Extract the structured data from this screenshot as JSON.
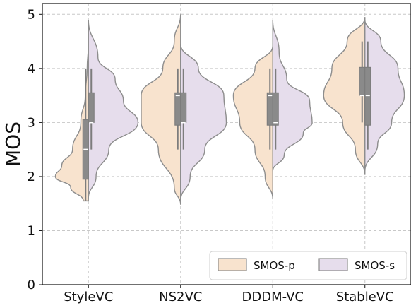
{
  "chart_data": {
    "type": "violin",
    "title": "",
    "xlabel": "",
    "ylabel": "MOS",
    "ylim": [
      0,
      5.2
    ],
    "yticks": [
      0,
      1,
      2,
      3,
      4,
      5
    ],
    "grid": true,
    "legend_placement": "bottom-right",
    "categories": [
      "StyleVC",
      "NS2VC",
      "DDDM-VC",
      "StableVC"
    ],
    "series": [
      {
        "name": "SMOS-p",
        "side": "left",
        "color": "#f8e3ce",
        "stats": [
          {
            "min": 1.55,
            "q1": 1.95,
            "median": 2.5,
            "q3": 3.05,
            "max": 4.45,
            "whisker_low": 1.55,
            "whisker_high": 4.0
          },
          {
            "min": 1.48,
            "q1": 2.95,
            "median": 3.5,
            "q3": 3.55,
            "max": 5.0,
            "whisker_low": 2.5,
            "whisker_high": 4.0
          },
          {
            "min": 1.58,
            "q1": 2.95,
            "median": 3.5,
            "q3": 3.55,
            "max": 4.42,
            "whisker_low": 2.5,
            "whisker_high": 4.0
          },
          {
            "min": 2.03,
            "q1": 3.5,
            "median": 3.5,
            "q3": 4.02,
            "max": 4.95,
            "whisker_low": 3.0,
            "whisker_high": 4.5
          }
        ],
        "density": [
          [
            [
              1.55,
              0.08
            ],
            [
              1.8,
              0.28
            ],
            [
              2.0,
              0.52
            ],
            [
              2.2,
              0.42
            ],
            [
              2.5,
              0.25
            ],
            [
              3.0,
              0.12
            ],
            [
              3.5,
              0.05
            ],
            [
              4.0,
              0.02
            ],
            [
              4.45,
              0.0
            ]
          ],
          [
            [
              1.48,
              0.0
            ],
            [
              1.8,
              0.1
            ],
            [
              2.5,
              0.35
            ],
            [
              3.0,
              0.62
            ],
            [
              3.5,
              0.62
            ],
            [
              4.0,
              0.28
            ],
            [
              4.5,
              0.1
            ],
            [
              5.0,
              0.0
            ]
          ],
          [
            [
              1.58,
              0.0
            ],
            [
              2.0,
              0.12
            ],
            [
              2.5,
              0.28
            ],
            [
              3.0,
              0.52
            ],
            [
              3.5,
              0.62
            ],
            [
              4.0,
              0.28
            ],
            [
              4.42,
              0.0
            ]
          ],
          [
            [
              2.03,
              0.0
            ],
            [
              2.5,
              0.15
            ],
            [
              3.0,
              0.35
            ],
            [
              3.5,
              0.65
            ],
            [
              4.0,
              0.52
            ],
            [
              4.5,
              0.28
            ],
            [
              4.95,
              0.0
            ]
          ]
        ]
      },
      {
        "name": "SMOS-s",
        "side": "right",
        "color": "#e6ddec",
        "stats": [
          {
            "min": 1.6,
            "q1": 3.0,
            "median": 3.0,
            "q3": 3.55,
            "max": 4.9,
            "whisker_low": 2.5,
            "whisker_high": 4.0
          },
          {
            "min": 1.55,
            "q1": 3.0,
            "median": 3.0,
            "q3": 3.55,
            "max": 4.45,
            "whisker_low": 2.5,
            "whisker_high": 4.0
          },
          {
            "min": 2.1,
            "q1": 2.95,
            "median": 3.0,
            "q3": 3.55,
            "max": 4.9,
            "whisker_low": 2.5,
            "whisker_high": 4.0
          },
          {
            "min": 2.1,
            "q1": 2.95,
            "median": 3.5,
            "q3": 4.02,
            "max": 4.9,
            "whisker_low": 2.5,
            "whisker_high": 4.5
          }
        ],
        "density": [
          [
            [
              1.6,
              0.0
            ],
            [
              2.0,
              0.12
            ],
            [
              2.5,
              0.32
            ],
            [
              3.0,
              0.78
            ],
            [
              3.4,
              0.55
            ],
            [
              3.8,
              0.42
            ],
            [
              4.2,
              0.15
            ],
            [
              4.9,
              0.0
            ]
          ],
          [
            [
              1.55,
              0.0
            ],
            [
              2.0,
              0.15
            ],
            [
              2.5,
              0.38
            ],
            [
              3.0,
              0.72
            ],
            [
              3.5,
              0.68
            ],
            [
              4.0,
              0.28
            ],
            [
              4.45,
              0.0
            ]
          ],
          [
            [
              2.1,
              0.0
            ],
            [
              2.4,
              0.18
            ],
            [
              2.8,
              0.48
            ],
            [
              3.0,
              0.62
            ],
            [
              3.4,
              0.58
            ],
            [
              3.8,
              0.22
            ],
            [
              4.3,
              0.1
            ],
            [
              4.9,
              0.0
            ]
          ],
          [
            [
              2.1,
              0.0
            ],
            [
              2.6,
              0.2
            ],
            [
              3.0,
              0.42
            ],
            [
              3.5,
              0.62
            ],
            [
              4.0,
              0.52
            ],
            [
              4.5,
              0.25
            ],
            [
              4.9,
              0.0
            ]
          ]
        ]
      }
    ]
  }
}
